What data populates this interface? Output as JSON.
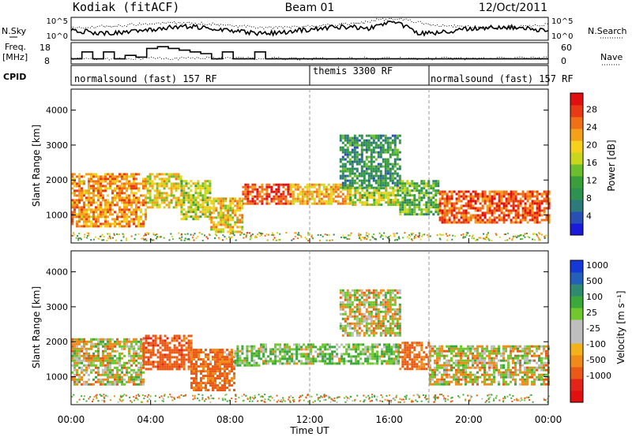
{
  "header": {
    "station": "Kodiak (fitACF)",
    "beam": "Beam 01",
    "date": "12/Oct/2011"
  },
  "status_panel": {
    "left_label_top": "N.Sky",
    "left_label_freq_1": "Freq.",
    "left_label_freq_2": "[MHz]",
    "left_label_cpid": "CPID",
    "right_label_top": "N.Search",
    "right_label_nave": "Nave",
    "nsky_ticks": [
      "10^5",
      "10^0"
    ],
    "nsearch_ticks": [
      "10^5",
      "10^0"
    ],
    "freq_ticks": [
      "18",
      "8"
    ],
    "nave_ticks": [
      "60",
      "0"
    ],
    "freq_step_values_mhz": [
      10,
      14,
      10,
      14,
      10,
      12,
      11,
      16,
      17,
      16,
      15,
      14,
      13,
      10,
      14,
      10,
      10,
      14,
      10,
      10,
      10,
      10,
      10
    ],
    "cpid_segments": [
      {
        "label": "normalsound (fast) 157 RF",
        "start_hour": 0,
        "end_hour": 12
      },
      {
        "label": "themis 3300 RF",
        "start_hour": 12,
        "end_hour": 18
      },
      {
        "label": "normalsound (fast) 157 RF",
        "start_hour": 18,
        "end_hour": 24
      }
    ]
  },
  "colors": {
    "power_scale": [
      "#1a1adb",
      "#2850b4",
      "#2d7a7a",
      "#2f9150",
      "#3a9e3a",
      "#6cbf2c",
      "#c8d71e",
      "#f5d01c",
      "#f5a01a",
      "#f07018",
      "#e83a14",
      "#e01010"
    ],
    "velocity_scale": [
      "#1538d8",
      "#2460b8",
      "#2f8a70",
      "#3aa83a",
      "#70c82c",
      "#bebebe",
      "#bebebe",
      "#f3b21a",
      "#f08a18",
      "#ea5a16",
      "#e2241a",
      "#e01010"
    ]
  },
  "chart_data": [
    {
      "type": "heatmap",
      "panel": "Power",
      "xlabel": "Time UT",
      "ylabel": "Slant Range [km]",
      "x_range_hours": [
        0,
        24
      ],
      "y_range_km": [
        200,
        4600
      ],
      "y_ticks": [
        "1000",
        "2000",
        "3000",
        "4000"
      ],
      "x_ticks": [
        "00:00",
        "04:00",
        "08:00",
        "12:00",
        "16:00",
        "20:00",
        "00:00"
      ],
      "colorbar_label": "Power [dB]",
      "colorbar_ticks": [
        "4",
        "8",
        "12",
        "16",
        "20",
        "24",
        "28"
      ],
      "color_range": [
        0,
        30
      ],
      "scatter_bands": [
        {
          "t0": 0,
          "t1": 3.8,
          "r0": 700,
          "r1": 2200,
          "level": 22
        },
        {
          "t0": 3.8,
          "t1": 5.5,
          "r0": 1200,
          "r1": 2200,
          "level": 18
        },
        {
          "t0": 5.5,
          "t1": 7.0,
          "r0": 900,
          "r1": 2000,
          "level": 16
        },
        {
          "t0": 7.0,
          "t1": 8.6,
          "r0": 500,
          "r1": 1500,
          "level": 19
        },
        {
          "t0": 8.6,
          "t1": 11.0,
          "r0": 1300,
          "r1": 1900,
          "level": 26
        },
        {
          "t0": 11.0,
          "t1": 14.0,
          "r0": 1300,
          "r1": 1900,
          "level": 20
        },
        {
          "t0": 13.5,
          "t1": 16.5,
          "r0": 1800,
          "r1": 3300,
          "level": 9
        },
        {
          "t0": 14.0,
          "t1": 16.5,
          "r0": 1300,
          "r1": 1800,
          "level": 16
        },
        {
          "t0": 16.5,
          "t1": 18.5,
          "r0": 1000,
          "r1": 2000,
          "level": 12
        },
        {
          "t0": 18.5,
          "t1": 24.0,
          "r0": 800,
          "r1": 1700,
          "level": 25
        }
      ]
    },
    {
      "type": "heatmap",
      "panel": "Velocity",
      "xlabel": "Time UT",
      "ylabel": "Slant Range [km]",
      "x_range_hours": [
        0,
        24
      ],
      "y_range_km": [
        200,
        4600
      ],
      "y_ticks": [
        "1000",
        "2000",
        "3000",
        "4000"
      ],
      "x_ticks": [
        "00:00",
        "04:00",
        "08:00",
        "12:00",
        "16:00",
        "20:00",
        "00:00"
      ],
      "colorbar_label": "Velocity [m s⁻¹]",
      "colorbar_ticks": [
        "1000",
        "500",
        "100",
        "25",
        "-25",
        "-100",
        "-500",
        "-1000"
      ],
      "scatter_bands": [
        {
          "t0": 0,
          "t1": 3.6,
          "r0": 800,
          "r1": 2100,
          "velocity": 0
        },
        {
          "t0": 3.6,
          "t1": 6.0,
          "r0": 1200,
          "r1": 2200,
          "velocity": -200
        },
        {
          "t0": 6.0,
          "t1": 8.2,
          "r0": 600,
          "r1": 1800,
          "velocity": -150
        },
        {
          "t0": 8.2,
          "t1": 9.5,
          "r0": 1300,
          "r1": 1900,
          "velocity": 60
        },
        {
          "t0": 9.5,
          "t1": 16.5,
          "r0": 1400,
          "r1": 1950,
          "velocity": 80
        },
        {
          "t0": 13.5,
          "t1": 16.5,
          "r0": 2200,
          "r1": 3500,
          "velocity": 0
        },
        {
          "t0": 16.5,
          "t1": 18.0,
          "r0": 1200,
          "r1": 2000,
          "velocity": -150
        },
        {
          "t0": 18.0,
          "t1": 24.0,
          "r0": 800,
          "r1": 1900,
          "velocity": 0
        }
      ]
    }
  ]
}
